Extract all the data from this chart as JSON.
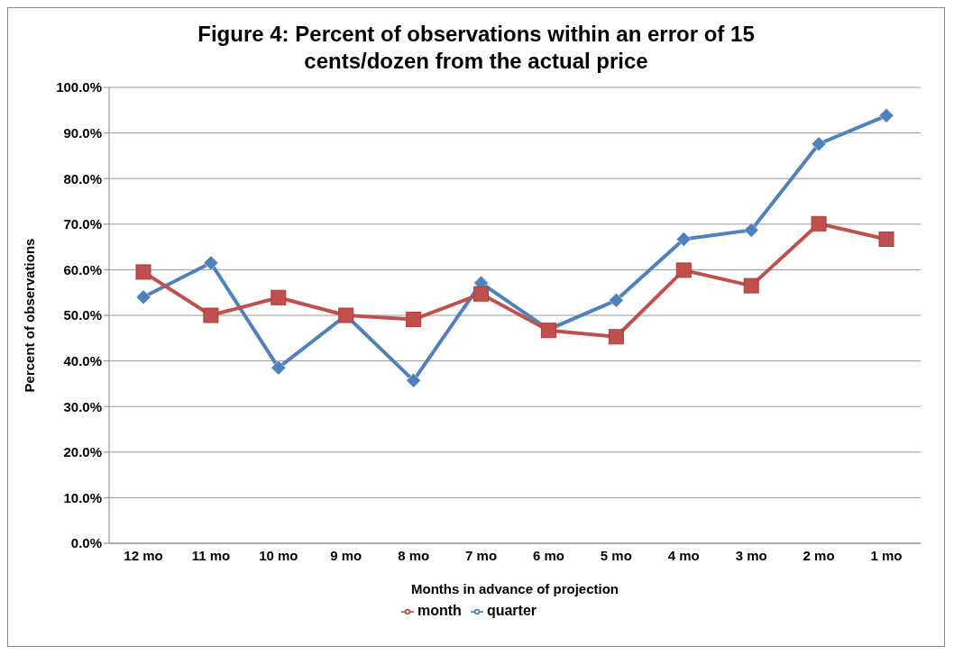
{
  "chart_data": {
    "type": "line",
    "title": "Figure 4: Percent of observations within an error of 15 cents/dozen from the actual price",
    "xlabel": "Months in advance of projection",
    "ylabel": "Percent of observations",
    "categories": [
      "12 mo",
      "11 mo",
      "10 mo",
      "9 mo",
      "8 mo",
      "7 mo",
      "6 mo",
      "5 mo",
      "4 mo",
      "3 mo",
      "2 mo",
      "1 mo"
    ],
    "series": [
      {
        "name": "quarter",
        "color": "#4f81bd",
        "marker": "diamond",
        "values": [
          54.0,
          61.5,
          38.5,
          50.0,
          35.7,
          57.1,
          46.9,
          53.3,
          66.7,
          68.7,
          87.6,
          93.8
        ]
      },
      {
        "name": "month",
        "color": "#c0504d",
        "marker": "square",
        "values": [
          59.5,
          50.0,
          53.9,
          50.0,
          49.1,
          54.7,
          46.7,
          45.3,
          59.9,
          56.5,
          70.1,
          66.7
        ]
      }
    ],
    "ylim": [
      0,
      100
    ],
    "yticks": [
      {
        "value": 0,
        "label": "0.0%"
      },
      {
        "value": 10,
        "label": "10.0%"
      },
      {
        "value": 20,
        "label": "20.0%"
      },
      {
        "value": 30,
        "label": "30.0%"
      },
      {
        "value": 40,
        "label": "40.0%"
      },
      {
        "value": 50,
        "label": "50.0%"
      },
      {
        "value": 60,
        "label": "60.0%"
      },
      {
        "value": 70,
        "label": "70.0%"
      },
      {
        "value": 80,
        "label": "80.0%"
      },
      {
        "value": 90,
        "label": "90.0%"
      },
      {
        "value": 100,
        "label": "100.0%"
      }
    ],
    "grid": "y",
    "legend": "bottom",
    "line_style": "solid"
  }
}
